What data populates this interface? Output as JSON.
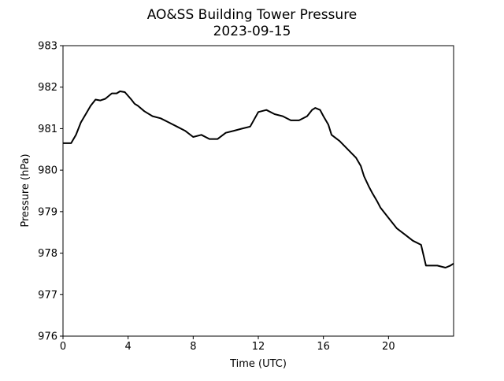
{
  "chart_data": {
    "type": "line",
    "title": "AO&SS Building Tower Pressure",
    "subtitle": "2023-09-15",
    "xlabel": "Time (UTC)",
    "ylabel": "Pressure (hPa)",
    "xlim": [
      0,
      24
    ],
    "ylim": [
      976,
      983
    ],
    "xticks": [
      0,
      4,
      8,
      12,
      16,
      20
    ],
    "yticks": [
      976,
      977,
      978,
      979,
      980,
      981,
      982,
      983
    ],
    "grid": false,
    "legend": "none",
    "series": [
      {
        "color": "#000000",
        "x": [
          0,
          0.5,
          0.8,
          1.1,
          1.4,
          1.7,
          2.0,
          2.3,
          2.6,
          3.0,
          3.3,
          3.5,
          3.8,
          4.2,
          4.4,
          4.6,
          5.0,
          5.5,
          6.0,
          6.5,
          7.0,
          7.5,
          8.0,
          8.5,
          9.0,
          9.5,
          10.0,
          10.5,
          11.0,
          11.5,
          12.0,
          12.5,
          13.0,
          13.5,
          14.0,
          14.5,
          15.0,
          15.3,
          15.5,
          15.8,
          16.0,
          16.3,
          16.5,
          17.0,
          17.5,
          18.0,
          18.3,
          18.5,
          18.8,
          19.0,
          19.3,
          19.5,
          20.0,
          20.5,
          21.0,
          21.5,
          22.0,
          22.3,
          22.6,
          23.0,
          23.5,
          23.8,
          24.0
        ],
        "y": [
          980.65,
          980.65,
          980.85,
          981.15,
          981.35,
          981.55,
          981.7,
          981.68,
          981.72,
          981.85,
          981.85,
          981.9,
          981.88,
          981.7,
          981.6,
          981.55,
          981.42,
          981.3,
          981.25,
          981.15,
          981.05,
          980.95,
          980.8,
          980.85,
          980.75,
          980.75,
          980.9,
          980.95,
          981.0,
          981.05,
          981.4,
          981.45,
          981.35,
          981.3,
          981.2,
          981.2,
          981.3,
          981.45,
          981.5,
          981.45,
          981.3,
          981.1,
          980.85,
          980.7,
          980.5,
          980.3,
          980.1,
          979.85,
          979.6,
          979.45,
          979.25,
          979.1,
          978.85,
          978.6,
          978.45,
          978.3,
          978.2,
          977.7,
          977.7,
          977.7,
          977.65,
          977.7,
          977.75
        ]
      }
    ]
  }
}
